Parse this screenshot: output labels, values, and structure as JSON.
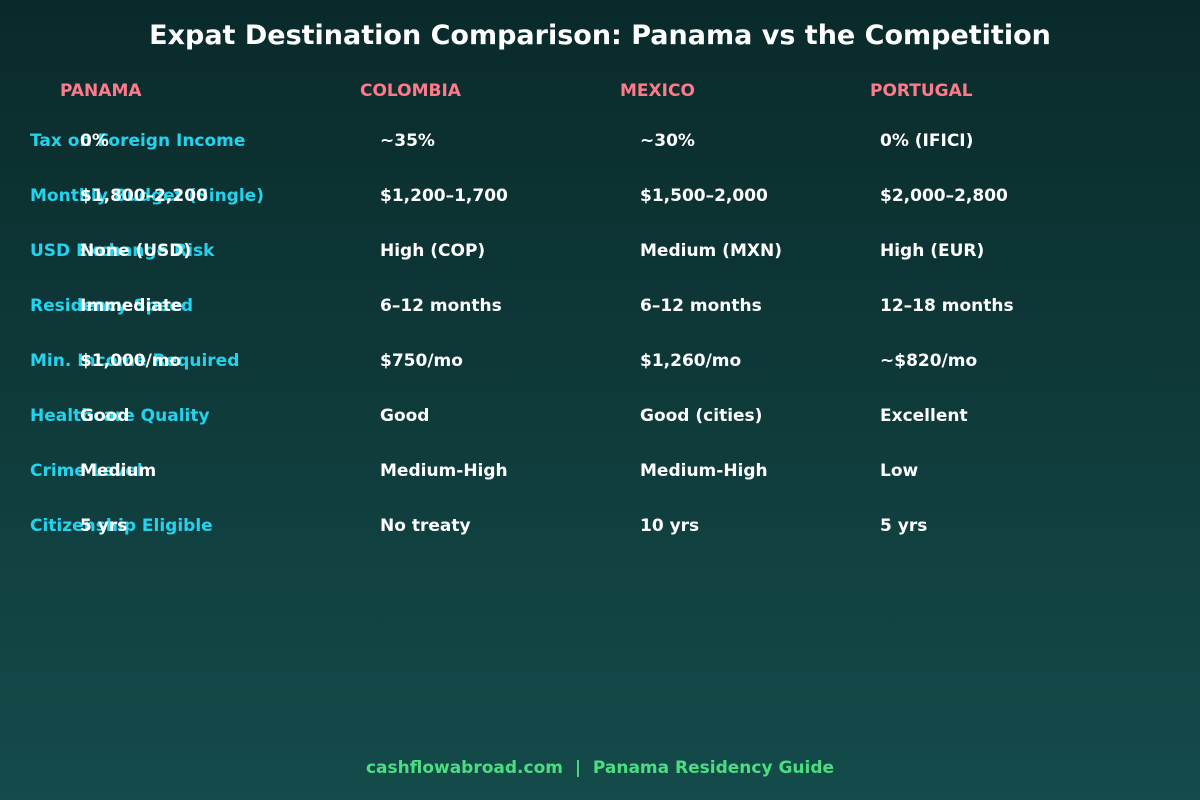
{
  "title": "Expat Destination Comparison: Panama vs the Competition",
  "columns": [
    "PANAMA",
    "COLOMBIA",
    "MEXICO",
    "PORTUGAL"
  ],
  "rows": [
    {
      "label": "Tax on Foreign Income",
      "values": [
        "0%",
        "~35%",
        "~30%",
        "0% (IFICI)"
      ]
    },
    {
      "label": "Monthly Budget (Single)",
      "values": [
        "$1,800–2,200",
        "$1,200–1,700",
        "$1,500–2,000",
        "$2,000–2,800"
      ]
    },
    {
      "label": "USD Exchange Risk",
      "values": [
        "None (USD)",
        "High (COP)",
        "Medium (MXN)",
        "High (EUR)"
      ]
    },
    {
      "label": "Residency Speed",
      "values": [
        "Immediate",
        "6–12 months",
        "6–12 months",
        "12–18 months"
      ]
    },
    {
      "label": "Min. Income Required",
      "values": [
        "$1,000/mo",
        "$750/mo",
        "$1,260/mo",
        "~$820/mo"
      ]
    },
    {
      "label": "Healthcare Quality",
      "values": [
        "Good",
        "Good",
        "Good (cities)",
        "Excellent"
      ]
    },
    {
      "label": "Crime Level",
      "values": [
        "Medium",
        "Medium-High",
        "Medium-High",
        "Low"
      ]
    },
    {
      "label": "Citizenship Eligible",
      "values": [
        "5 yrs",
        "No treaty",
        "10 yrs",
        "5 yrs"
      ]
    }
  ],
  "footer": "cashflowabroad.com  |  Panama Residency Guide",
  "colors": {
    "title": "#ffffff",
    "column_header": "#ff7a8a",
    "row_label": "#22d3ee",
    "cell": "#ffffff",
    "footer": "#4ade80"
  }
}
